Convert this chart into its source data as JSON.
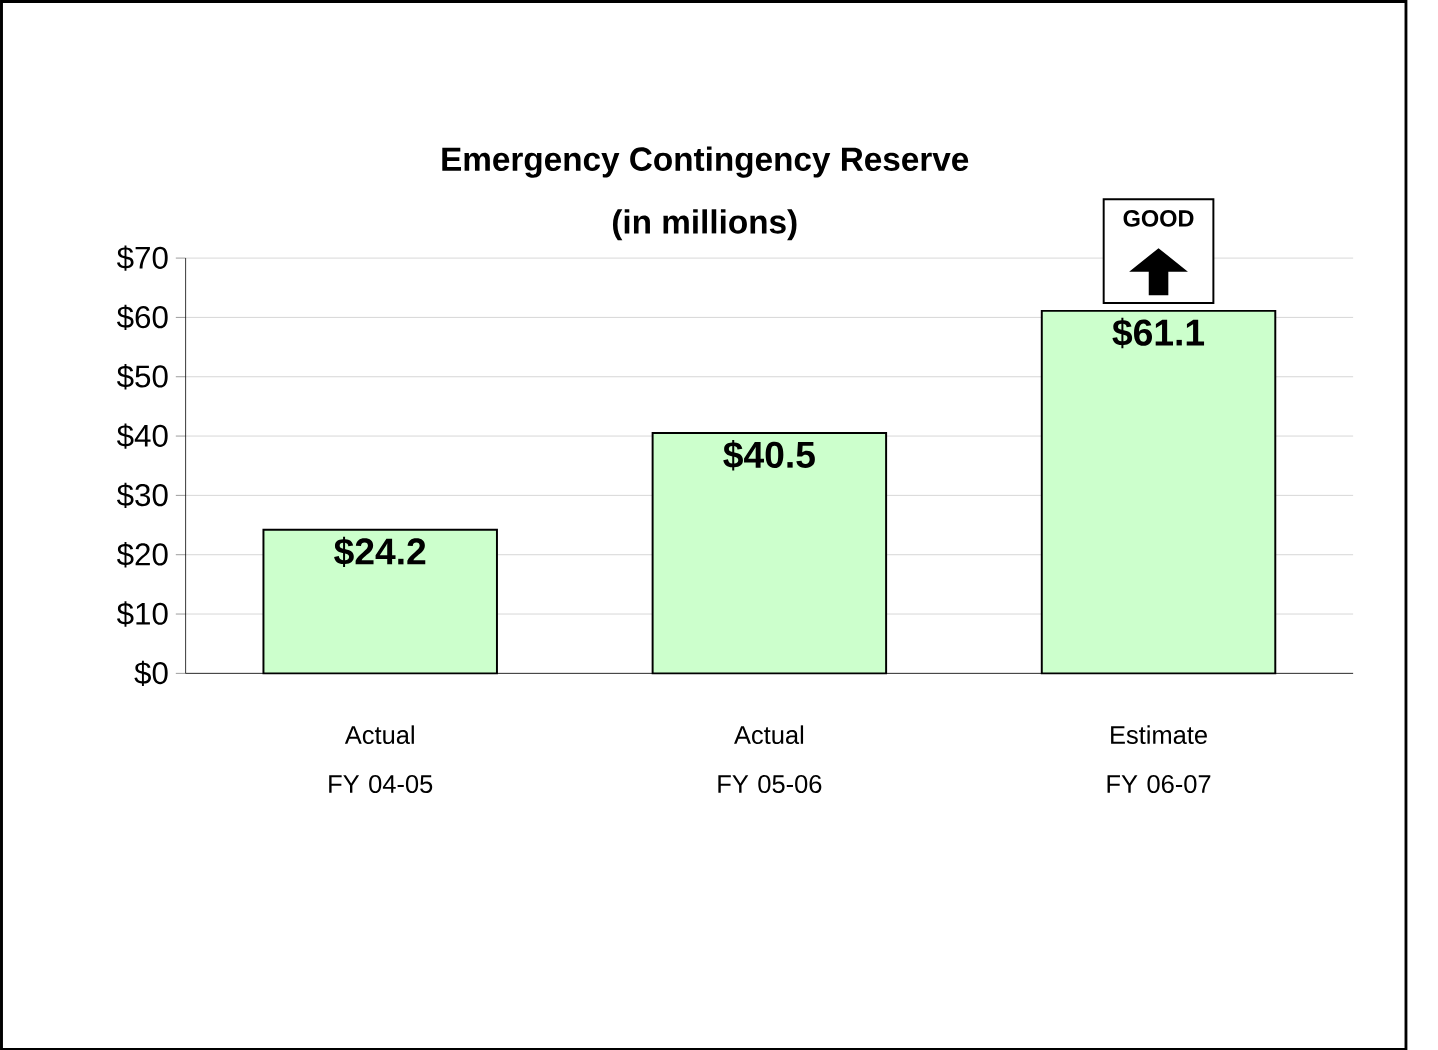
{
  "chart_data": {
    "type": "bar",
    "title": "Emergency Contingency Reserve",
    "subtitle": "(in millions)",
    "categories": [
      "Actual FY 04-05",
      "Actual FY 05-06",
      "Estimate FY 06-07"
    ],
    "values": [
      24.2,
      40.5,
      61.1
    ],
    "color": "#ccffcc",
    "value_labels": [
      "$24.2",
      "$40.5",
      "$61.1"
    ],
    "ylim": [
      0,
      70
    ],
    "yticks": [
      {
        "value": 0,
        "label": "$0"
      },
      {
        "value": 10,
        "label": "$10"
      },
      {
        "value": 20,
        "label": "$20"
      },
      {
        "value": 30,
        "label": "$30"
      },
      {
        "value": 40,
        "label": "$40"
      },
      {
        "value": 50,
        "label": "$50"
      },
      {
        "value": 60,
        "label": "$60"
      },
      {
        "value": 70,
        "label": "$70"
      }
    ],
    "grid": "y",
    "annotations": [
      "GOOD"
    ]
  }
}
